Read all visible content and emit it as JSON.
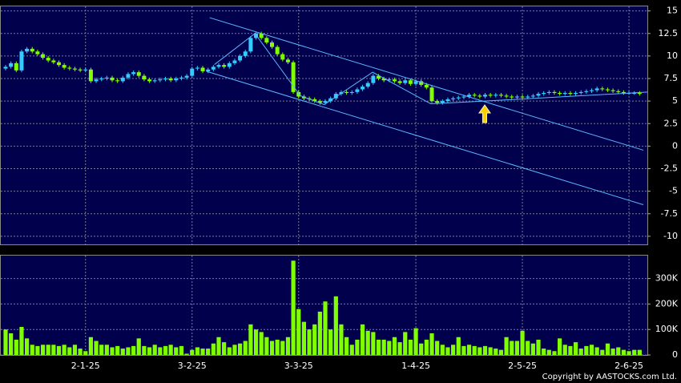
{
  "chart_data": [
    {
      "type": "candlestick",
      "up_color": "#33ccff",
      "down_color": "#80ff00",
      "line_color": "#5bb8ff",
      "grid": true,
      "ylim": [
        -10.9,
        15.5
      ],
      "yticks": [
        15,
        12.5,
        10,
        7.5,
        5,
        2.5,
        0,
        -2.5,
        -5,
        -7.5,
        -10
      ],
      "ohlc": [
        [
          8.6,
          9.0,
          8.4,
          8.8
        ],
        [
          8.8,
          9.4,
          8.6,
          9.2
        ],
        [
          9.2,
          9.4,
          8.2,
          8.4
        ],
        [
          8.4,
          10.7,
          8.2,
          10.5
        ],
        [
          10.5,
          11.0,
          10.3,
          10.8
        ],
        [
          10.8,
          11.0,
          10.3,
          10.5
        ],
        [
          10.5,
          10.7,
          10.0,
          10.2
        ],
        [
          10.2,
          10.4,
          9.6,
          9.8
        ],
        [
          9.8,
          10.0,
          9.3,
          9.5
        ],
        [
          9.5,
          9.7,
          9.1,
          9.3
        ],
        [
          9.3,
          9.5,
          8.8,
          9.0
        ],
        [
          9.0,
          9.2,
          8.5,
          8.7
        ],
        [
          8.7,
          8.9,
          8.4,
          8.6
        ],
        [
          8.6,
          8.8,
          8.3,
          8.5
        ],
        [
          8.5,
          8.7,
          8.2,
          8.4
        ],
        [
          8.4,
          8.7,
          8.2,
          8.5
        ],
        [
          8.5,
          8.7,
          7.0,
          7.2
        ],
        [
          7.2,
          7.6,
          7.0,
          7.4
        ],
        [
          7.4,
          7.7,
          7.2,
          7.5
        ],
        [
          7.5,
          7.8,
          7.3,
          7.6
        ],
        [
          7.6,
          7.8,
          7.1,
          7.3
        ],
        [
          7.3,
          7.5,
          7.0,
          7.2
        ],
        [
          7.2,
          7.8,
          7.0,
          7.6
        ],
        [
          7.6,
          8.2,
          7.4,
          8.0
        ],
        [
          8.0,
          8.4,
          7.8,
          8.2
        ],
        [
          8.2,
          8.4,
          7.6,
          7.8
        ],
        [
          7.8,
          8.0,
          7.2,
          7.4
        ],
        [
          7.4,
          7.6,
          7.0,
          7.2
        ],
        [
          7.2,
          7.5,
          7.0,
          7.3
        ],
        [
          7.3,
          7.6,
          7.1,
          7.4
        ],
        [
          7.4,
          7.7,
          7.2,
          7.5
        ],
        [
          7.5,
          7.7,
          7.1,
          7.3
        ],
        [
          7.3,
          7.7,
          7.1,
          7.5
        ],
        [
          7.5,
          7.8,
          7.3,
          7.6
        ],
        [
          7.6,
          8.0,
          7.4,
          7.8
        ],
        [
          7.8,
          8.8,
          7.6,
          8.6
        ],
        [
          8.6,
          8.9,
          8.4,
          8.7
        ],
        [
          8.7,
          8.9,
          8.1,
          8.3
        ],
        [
          8.3,
          8.7,
          8.1,
          8.5
        ],
        [
          8.5,
          9.0,
          8.3,
          8.8
        ],
        [
          8.8,
          9.2,
          8.6,
          9.0
        ],
        [
          9.0,
          9.2,
          8.6,
          8.8
        ],
        [
          8.8,
          9.4,
          8.6,
          9.2
        ],
        [
          9.2,
          9.7,
          9.0,
          9.5
        ],
        [
          9.5,
          10.2,
          9.3,
          10.0
        ],
        [
          10.0,
          10.7,
          9.8,
          10.5
        ],
        [
          10.5,
          12.2,
          10.3,
          12.0
        ],
        [
          12.0,
          12.7,
          11.8,
          12.5
        ],
        [
          12.5,
          12.7,
          11.8,
          12.0
        ],
        [
          12.0,
          12.2,
          11.3,
          11.5
        ],
        [
          11.5,
          11.7,
          10.8,
          11.0
        ],
        [
          11.0,
          11.2,
          10.0,
          10.2
        ],
        [
          10.2,
          10.4,
          9.4,
          9.6
        ],
        [
          9.6,
          9.8,
          9.1,
          9.3
        ],
        [
          9.3,
          9.5,
          5.8,
          6.0
        ],
        [
          6.0,
          6.2,
          5.3,
          5.5
        ],
        [
          5.5,
          5.7,
          5.1,
          5.3
        ],
        [
          5.3,
          5.5,
          5.0,
          5.2
        ],
        [
          5.2,
          5.4,
          4.8,
          5.0
        ],
        [
          5.0,
          5.2,
          4.6,
          4.8
        ],
        [
          4.8,
          5.2,
          4.6,
          5.0
        ],
        [
          5.0,
          5.5,
          4.8,
          5.3
        ],
        [
          5.3,
          6.0,
          5.1,
          5.8
        ],
        [
          5.8,
          6.2,
          5.6,
          6.0
        ],
        [
          6.0,
          6.2,
          5.7,
          5.9
        ],
        [
          5.9,
          6.2,
          5.7,
          6.0
        ],
        [
          6.0,
          6.5,
          5.8,
          6.3
        ],
        [
          6.3,
          6.8,
          6.1,
          6.6
        ],
        [
          6.6,
          7.2,
          6.4,
          7.0
        ],
        [
          7.0,
          8.0,
          6.8,
          7.8
        ],
        [
          7.8,
          8.0,
          7.3,
          7.5
        ],
        [
          7.5,
          7.7,
          7.1,
          7.3
        ],
        [
          7.3,
          7.6,
          7.1,
          7.4
        ],
        [
          7.4,
          7.6,
          7.0,
          7.2
        ],
        [
          7.2,
          7.4,
          6.8,
          7.0
        ],
        [
          7.0,
          7.5,
          6.8,
          7.3
        ],
        [
          7.3,
          7.5,
          6.7,
          6.9
        ],
        [
          6.9,
          7.4,
          6.7,
          7.2
        ],
        [
          7.2,
          7.4,
          6.6,
          6.8
        ],
        [
          6.8,
          7.0,
          6.3,
          6.5
        ],
        [
          6.5,
          6.7,
          4.8,
          5.0
        ],
        [
          5.0,
          5.2,
          4.6,
          4.8
        ],
        [
          4.8,
          5.2,
          4.6,
          5.0
        ],
        [
          5.0,
          5.4,
          4.8,
          5.2
        ],
        [
          5.2,
          5.5,
          5.0,
          5.3
        ],
        [
          5.3,
          5.6,
          5.1,
          5.4
        ],
        [
          5.4,
          5.7,
          5.2,
          5.5
        ],
        [
          5.5,
          5.9,
          5.3,
          5.7
        ],
        [
          5.7,
          5.9,
          5.4,
          5.6
        ],
        [
          5.6,
          5.8,
          5.3,
          5.5
        ],
        [
          5.5,
          5.9,
          5.3,
          5.7
        ],
        [
          5.7,
          5.9,
          5.4,
          5.6
        ],
        [
          5.6,
          5.9,
          5.4,
          5.7
        ],
        [
          5.7,
          5.9,
          5.4,
          5.6
        ],
        [
          5.6,
          5.8,
          5.3,
          5.5
        ],
        [
          5.5,
          5.7,
          5.2,
          5.4
        ],
        [
          5.4,
          5.7,
          5.2,
          5.5
        ],
        [
          5.5,
          5.7,
          5.2,
          5.4
        ],
        [
          5.4,
          5.7,
          5.2,
          5.5
        ],
        [
          5.5,
          5.8,
          5.3,
          5.6
        ],
        [
          5.6,
          6.0,
          5.4,
          5.8
        ],
        [
          5.8,
          6.1,
          5.6,
          5.9
        ],
        [
          5.9,
          6.2,
          5.7,
          6.0
        ],
        [
          6.0,
          6.2,
          5.7,
          5.9
        ],
        [
          5.9,
          6.1,
          5.6,
          5.8
        ],
        [
          5.8,
          6.1,
          5.6,
          5.9
        ],
        [
          5.9,
          6.1,
          5.6,
          5.8
        ],
        [
          5.8,
          6.1,
          5.6,
          5.9
        ],
        [
          5.9,
          6.2,
          5.7,
          6.0
        ],
        [
          6.0,
          6.3,
          5.8,
          6.1
        ],
        [
          6.1,
          6.4,
          5.9,
          6.2
        ],
        [
          6.2,
          6.6,
          6.0,
          6.4
        ],
        [
          6.4,
          6.6,
          6.1,
          6.3
        ],
        [
          6.3,
          6.5,
          6.0,
          6.2
        ],
        [
          6.2,
          6.4,
          5.9,
          6.1
        ],
        [
          6.1,
          6.3,
          5.8,
          6.0
        ],
        [
          6.0,
          6.2,
          5.7,
          5.9
        ],
        [
          5.9,
          6.1,
          5.7,
          5.9
        ],
        [
          5.9,
          6.1,
          5.7,
          5.9
        ],
        [
          5.9,
          6.1,
          5.6,
          5.8
        ]
      ],
      "trendlines": [
        {
          "x": [
            38.3,
            119.7
          ],
          "y": [
            14.25,
            -0.45
          ]
        },
        {
          "x": [
            37.7,
            119.7
          ],
          "y": [
            8.3,
            -6.5
          ]
        },
        {
          "x": [
            39.2,
            46.8,
            55.3,
            59.8,
            68.9,
            79.8,
            90,
            120.5
          ],
          "y": [
            9.05,
            12.5,
            5.6,
            4.6,
            8.2,
            4.7,
            5.0,
            6.0
          ]
        }
      ]
    },
    {
      "type": "bar",
      "color": "#80ff00",
      "grid": true,
      "ylim": [
        0,
        390000
      ],
      "yticks": [
        0,
        {
          "value": 100000,
          "label": "100K"
        },
        {
          "value": 200000,
          "label": "200K"
        },
        {
          "value": 300000,
          "label": "300K"
        }
      ],
      "categories": [
        null,
        null,
        null,
        null,
        null,
        null,
        null,
        null,
        null,
        null,
        null,
        null,
        null,
        null,
        null,
        "2-1-25",
        null,
        null,
        null,
        null,
        null,
        null,
        null,
        null,
        null,
        null,
        null,
        null,
        null,
        null,
        null,
        null,
        null,
        null,
        null,
        "3-2-25",
        null,
        null,
        null,
        null,
        null,
        null,
        null,
        null,
        null,
        null,
        null,
        null,
        null,
        null,
        null,
        null,
        null,
        null,
        null,
        "3-3-25",
        null,
        null,
        null,
        null,
        null,
        null,
        null,
        null,
        null,
        null,
        null,
        null,
        null,
        null,
        null,
        null,
        null,
        null,
        null,
        null,
        null,
        "1-4-25",
        null,
        null,
        null,
        null,
        null,
        null,
        null,
        null,
        null,
        null,
        null,
        null,
        null,
        null,
        null,
        null,
        null,
        null,
        null,
        "2-5-25",
        null,
        null,
        null,
        null,
        null,
        null,
        null,
        null,
        null,
        null,
        null,
        null,
        null,
        null,
        null,
        null,
        null,
        null,
        null,
        "2-6-25",
        null,
        null
      ],
      "values": [
        100000,
        85000,
        60000,
        110000,
        65000,
        40000,
        35000,
        40000,
        40000,
        40000,
        35000,
        40000,
        30000,
        40000,
        25000,
        15000,
        70000,
        55000,
        40000,
        40000,
        30000,
        35000,
        25000,
        30000,
        35000,
        65000,
        35000,
        30000,
        40000,
        30000,
        35000,
        40000,
        30000,
        35000,
        5000,
        20000,
        30000,
        25000,
        25000,
        45000,
        70000,
        50000,
        30000,
        40000,
        45000,
        55000,
        120000,
        100000,
        90000,
        70000,
        55000,
        60000,
        55000,
        70000,
        370000,
        180000,
        130000,
        100000,
        120000,
        170000,
        210000,
        100000,
        230000,
        120000,
        70000,
        40000,
        60000,
        120000,
        95000,
        90000,
        60000,
        60000,
        55000,
        70000,
        50000,
        90000,
        60000,
        105000,
        45000,
        60000,
        85000,
        55000,
        40000,
        30000,
        40000,
        70000,
        35000,
        40000,
        35000,
        30000,
        35000,
        30000,
        25000,
        20000,
        70000,
        55000,
        55000,
        95000,
        55000,
        45000,
        60000,
        25000,
        20000,
        15000,
        65000,
        40000,
        35000,
        50000,
        25000,
        35000,
        40000,
        30000,
        20000,
        45000,
        25000,
        30000,
        20000,
        15000,
        20000,
        20000
      ]
    }
  ],
  "copyright": "Copyright by AASTOCKS.com Ltd."
}
